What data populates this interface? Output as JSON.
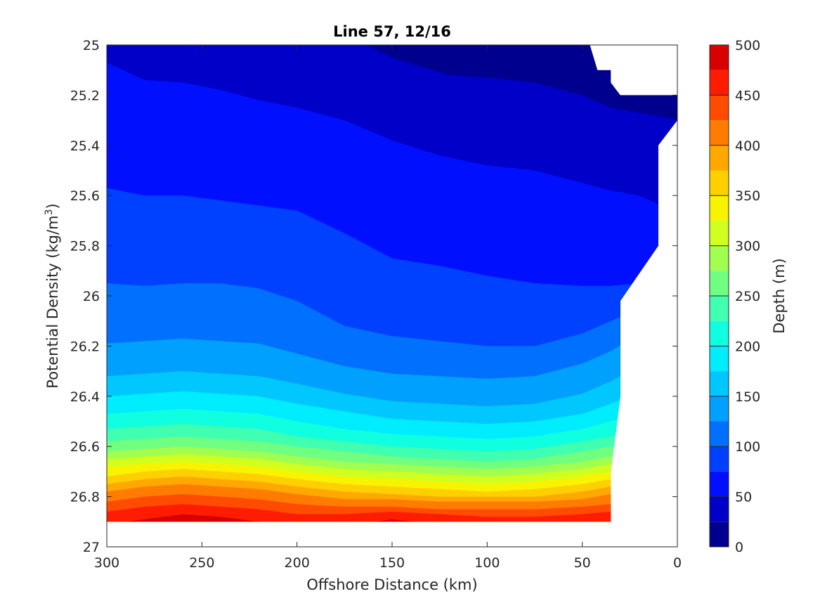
{
  "chart_data": {
    "type": "filled-contour",
    "title": "Line 57, 12/16",
    "xlabel": "Offshore Distance (km)",
    "ylabel_main": "Potential Density (kg/m",
    "ylabel_sup": "3",
    "ylabel_close": ")",
    "colorbar_label": "Depth (m)",
    "x_axis": {
      "range": [
        0,
        300
      ],
      "reversed": true,
      "ticks": [
        300,
        250,
        200,
        150,
        100,
        50,
        0
      ]
    },
    "y_axis": {
      "range": [
        25,
        27
      ],
      "reversed": true,
      "ticks": [
        25,
        25.2,
        25.4,
        25.6,
        25.8,
        26,
        26.2,
        26.4,
        26.6,
        26.8,
        27
      ]
    },
    "y_tick_labels": [
      "25",
      "25.2",
      "25.4",
      "25.6",
      "25.8",
      "26",
      "26.2",
      "26.4",
      "26.6",
      "26.8",
      "27"
    ],
    "colorbar": {
      "range": [
        0,
        500
      ],
      "ticks": [
        0,
        50,
        100,
        150,
        200,
        250,
        300,
        350,
        400,
        450,
        500
      ],
      "levels": [
        0,
        25,
        50,
        75,
        100,
        125,
        150,
        175,
        200,
        225,
        250,
        275,
        300,
        325,
        350,
        375,
        400,
        425,
        450,
        475,
        500
      ],
      "colors": [
        "#00008f",
        "#0000c8",
        "#0010ff",
        "#0040ff",
        "#0070ff",
        "#00a0ff",
        "#00c8ff",
        "#00ecff",
        "#10ffe0",
        "#40ffb0",
        "#70ff80",
        "#a0ff50",
        "#d0ff20",
        "#f8f400",
        "#ffd000",
        "#ffa800",
        "#ff7c00",
        "#ff4c00",
        "#ff1c00",
        "#d80000",
        "#a00000"
      ]
    },
    "contours": [
      {
        "depth": 25,
        "x": [
          300,
          250,
          200,
          175,
          150,
          120,
          100,
          75,
          50,
          35,
          20,
          5,
          0
        ],
        "y": [
          24.9,
          24.8,
          24.84,
          24.96,
          25.05,
          25.12,
          25.13,
          25.15,
          25.2,
          25.25,
          25.27,
          25.29,
          25.3
        ]
      },
      {
        "depth": 50,
        "x": [
          300,
          280,
          260,
          240,
          220,
          200,
          175,
          150,
          125,
          100,
          75,
          50,
          35,
          20,
          5
        ],
        "y": [
          25.07,
          25.14,
          25.15,
          25.18,
          25.22,
          25.25,
          25.3,
          25.38,
          25.44,
          25.48,
          25.5,
          25.55,
          25.58,
          25.6,
          25.65
        ]
      },
      {
        "depth": 75,
        "x": [
          300,
          280,
          260,
          240,
          220,
          200,
          175,
          150,
          125,
          100,
          75,
          50,
          35,
          20,
          5
        ],
        "y": [
          25.57,
          25.6,
          25.6,
          25.62,
          25.64,
          25.66,
          25.75,
          25.85,
          25.88,
          25.92,
          25.95,
          25.96,
          25.96,
          25.95,
          25.94
        ]
      },
      {
        "depth": 100,
        "x": [
          300,
          280,
          260,
          240,
          220,
          200,
          175,
          150,
          125,
          100,
          75,
          50,
          35,
          20,
          5
        ],
        "y": [
          25.95,
          25.96,
          25.95,
          25.95,
          25.97,
          26.02,
          26.12,
          26.16,
          26.18,
          26.2,
          26.2,
          26.15,
          26.1,
          26.05,
          26.0
        ]
      },
      {
        "depth": 125,
        "x": [
          300,
          280,
          260,
          240,
          220,
          200,
          175,
          150,
          125,
          100,
          75,
          50,
          35,
          20,
          5
        ],
        "y": [
          26.19,
          26.18,
          26.17,
          26.18,
          26.19,
          26.23,
          26.28,
          26.31,
          26.32,
          26.33,
          26.32,
          26.27,
          26.22,
          26.15,
          26.1
        ]
      },
      {
        "depth": 150,
        "x": [
          300,
          280,
          260,
          240,
          220,
          200,
          175,
          150,
          125,
          100,
          75,
          50,
          35,
          20,
          5
        ],
        "y": [
          26.32,
          26.31,
          26.3,
          26.31,
          26.32,
          26.35,
          26.39,
          26.42,
          26.43,
          26.44,
          26.43,
          26.39,
          26.34,
          26.28,
          26.22
        ]
      },
      {
        "depth": 175,
        "x": [
          300,
          280,
          260,
          240,
          220,
          200,
          175,
          150,
          125,
          100,
          75,
          50,
          35,
          20,
          5
        ],
        "y": [
          26.4,
          26.39,
          26.38,
          26.39,
          26.4,
          26.43,
          26.46,
          26.49,
          26.5,
          26.51,
          26.5,
          26.47,
          26.43,
          26.38,
          26.33
        ]
      },
      {
        "depth": 200,
        "x": [
          300,
          280,
          260,
          240,
          220,
          200,
          175,
          150,
          125,
          100,
          75,
          50,
          35,
          20,
          5
        ],
        "y": [
          26.47,
          26.46,
          26.45,
          26.46,
          26.47,
          26.5,
          26.53,
          26.55,
          26.56,
          26.57,
          26.56,
          26.53,
          26.5,
          26.46,
          26.42
        ]
      },
      {
        "depth": 225,
        "x": [
          300,
          280,
          260,
          240,
          220,
          200,
          175,
          150,
          125,
          100,
          75,
          50,
          35,
          20,
          5
        ],
        "y": [
          26.53,
          26.52,
          26.51,
          26.52,
          26.53,
          26.56,
          26.58,
          26.6,
          26.61,
          26.62,
          26.61,
          26.58,
          26.56,
          26.53,
          26.5
        ]
      },
      {
        "depth": 250,
        "x": [
          300,
          280,
          260,
          240,
          220,
          200,
          175,
          150,
          125,
          100,
          75,
          50,
          35,
          20,
          5
        ],
        "y": [
          26.58,
          26.57,
          26.56,
          26.57,
          26.58,
          26.6,
          26.62,
          26.64,
          26.65,
          26.66,
          26.65,
          26.62,
          26.6,
          26.58,
          26.56
        ]
      },
      {
        "depth": 275,
        "x": [
          300,
          280,
          260,
          240,
          220,
          200,
          175,
          150,
          125,
          100,
          75,
          50,
          35,
          20,
          5
        ],
        "y": [
          26.62,
          26.61,
          26.6,
          26.61,
          26.62,
          26.64,
          26.66,
          26.67,
          26.68,
          26.69,
          26.68,
          26.66,
          26.64,
          26.62,
          26.61
        ]
      },
      {
        "depth": 300,
        "x": [
          300,
          280,
          260,
          240,
          220,
          200,
          175,
          150,
          125,
          100,
          75,
          50,
          35,
          20,
          5
        ],
        "y": [
          26.65,
          26.64,
          26.63,
          26.64,
          26.65,
          26.67,
          26.69,
          26.7,
          26.71,
          26.72,
          26.71,
          26.69,
          26.67,
          26.66,
          26.65
        ]
      },
      {
        "depth": 325,
        "x": [
          300,
          280,
          260,
          240,
          220,
          200,
          175,
          150,
          125,
          100,
          75,
          50,
          35,
          20,
          5
        ],
        "y": [
          26.68,
          26.67,
          26.66,
          26.67,
          26.68,
          26.7,
          26.72,
          26.73,
          26.74,
          26.75,
          26.74,
          26.72,
          26.7,
          26.69,
          26.68
        ]
      },
      {
        "depth": 350,
        "x": [
          300,
          280,
          260,
          240,
          220,
          200,
          175,
          150,
          125,
          100,
          75,
          50,
          35,
          20,
          5
        ],
        "y": [
          26.72,
          26.7,
          26.69,
          26.7,
          26.71,
          26.73,
          26.75,
          26.76,
          26.77,
          26.78,
          26.77,
          26.75,
          26.73,
          26.72,
          26.72
        ]
      },
      {
        "depth": 375,
        "x": [
          300,
          280,
          260,
          240,
          220,
          200,
          175,
          150,
          125,
          100,
          75,
          50,
          35,
          20,
          5
        ],
        "y": [
          26.75,
          26.73,
          26.72,
          26.73,
          26.74,
          26.76,
          26.78,
          26.79,
          26.8,
          26.8,
          26.8,
          26.78,
          26.76,
          26.75,
          26.75
        ]
      },
      {
        "depth": 400,
        "x": [
          300,
          280,
          260,
          240,
          220,
          200,
          175,
          150,
          125,
          100,
          75,
          50,
          35,
          20,
          5
        ],
        "y": [
          26.78,
          26.76,
          26.75,
          26.76,
          26.77,
          26.79,
          26.81,
          26.81,
          26.82,
          26.82,
          26.82,
          26.81,
          26.79,
          26.78,
          26.78
        ]
      },
      {
        "depth": 425,
        "x": [
          300,
          280,
          260,
          240,
          220,
          200,
          175,
          150,
          125,
          100,
          75,
          50,
          35,
          20,
          5
        ],
        "y": [
          26.82,
          26.8,
          26.79,
          26.8,
          26.81,
          26.83,
          26.84,
          26.84,
          26.85,
          26.85,
          26.85,
          26.84,
          26.83,
          26.82,
          26.82
        ]
      },
      {
        "depth": 450,
        "x": [
          300,
          280,
          260,
          240,
          220,
          200,
          175,
          150,
          125,
          100,
          75,
          50,
          35,
          20,
          5
        ],
        "y": [
          26.86,
          26.84,
          26.83,
          26.84,
          26.85,
          26.87,
          26.87,
          26.86,
          26.87,
          26.88,
          26.88,
          26.87,
          26.86,
          26.86,
          26.86
        ]
      },
      {
        "depth": 475,
        "x": [
          300,
          280,
          260,
          240,
          220,
          200,
          175,
          150,
          125,
          100,
          75,
          50,
          35,
          20,
          5
        ],
        "y": [
          26.91,
          26.89,
          26.87,
          26.88,
          26.9,
          26.92,
          26.92,
          26.89,
          26.91,
          26.92,
          26.92,
          26.91,
          26.9,
          26.91,
          26.91
        ]
      }
    ],
    "data_mask": {
      "x": [
        300,
        46,
        42,
        35,
        35,
        30,
        20,
        18,
        10,
        10,
        5,
        5,
        0,
        0,
        10,
        10,
        30,
        30,
        35,
        35,
        300
      ],
      "y": [
        25.0,
        25.0,
        25.1,
        25.1,
        25.15,
        25.2,
        25.2,
        25.2,
        25.2,
        25.2,
        25.2,
        25.2,
        25.2,
        25.3,
        25.4,
        25.8,
        26.02,
        26.4,
        26.7,
        26.9,
        26.9
      ]
    }
  }
}
